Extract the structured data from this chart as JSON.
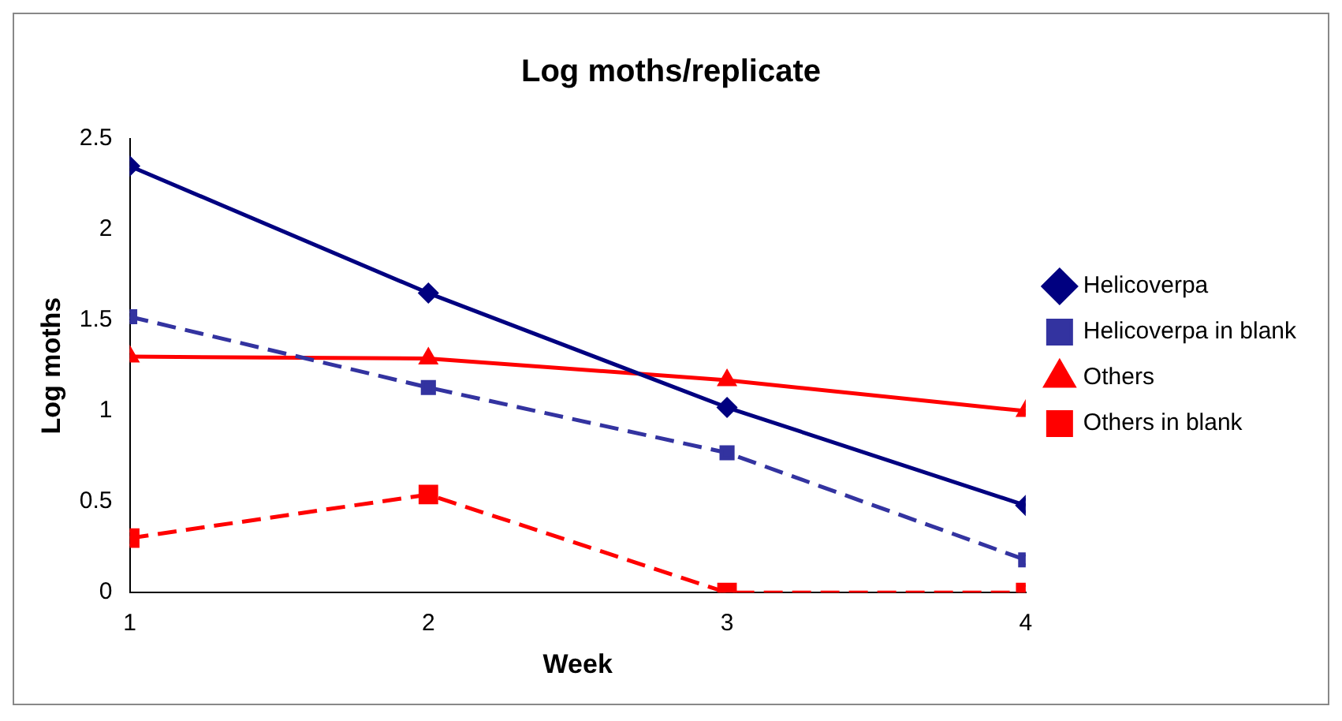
{
  "chart_data": {
    "type": "line",
    "title": "Log moths/replicate",
    "xlabel": "Week",
    "ylabel": "Log moths",
    "x": [
      1,
      2,
      3,
      4
    ],
    "xlim": [
      1,
      4
    ],
    "xticks": [
      1,
      2,
      3,
      4
    ],
    "ylim": [
      0,
      2.5
    ],
    "yticks": [
      0,
      0.5,
      1,
      1.5,
      2,
      2.5
    ],
    "grid": false,
    "legend": "right",
    "series": [
      {
        "name": "Helicoverpa",
        "color": "#000080",
        "values": [
          2.35,
          1.65,
          1.02,
          0.48
        ],
        "marker": "diamond",
        "line_style": "solid"
      },
      {
        "name": "Helicoverpa in blank",
        "color": "#3333a0",
        "values": [
          1.52,
          1.13,
          0.77,
          0.18
        ],
        "marker": "square",
        "line_style": "dashed"
      },
      {
        "name": "Others",
        "color": "#ff0000",
        "values": [
          1.3,
          1.29,
          1.17,
          1.0
        ],
        "marker": "triangle",
        "line_style": "solid"
      },
      {
        "name": "Others in blank",
        "color": "#ff0000",
        "values": [
          0.3,
          0.54,
          0,
          0
        ],
        "marker": "square",
        "line_style": "dashed"
      }
    ]
  }
}
